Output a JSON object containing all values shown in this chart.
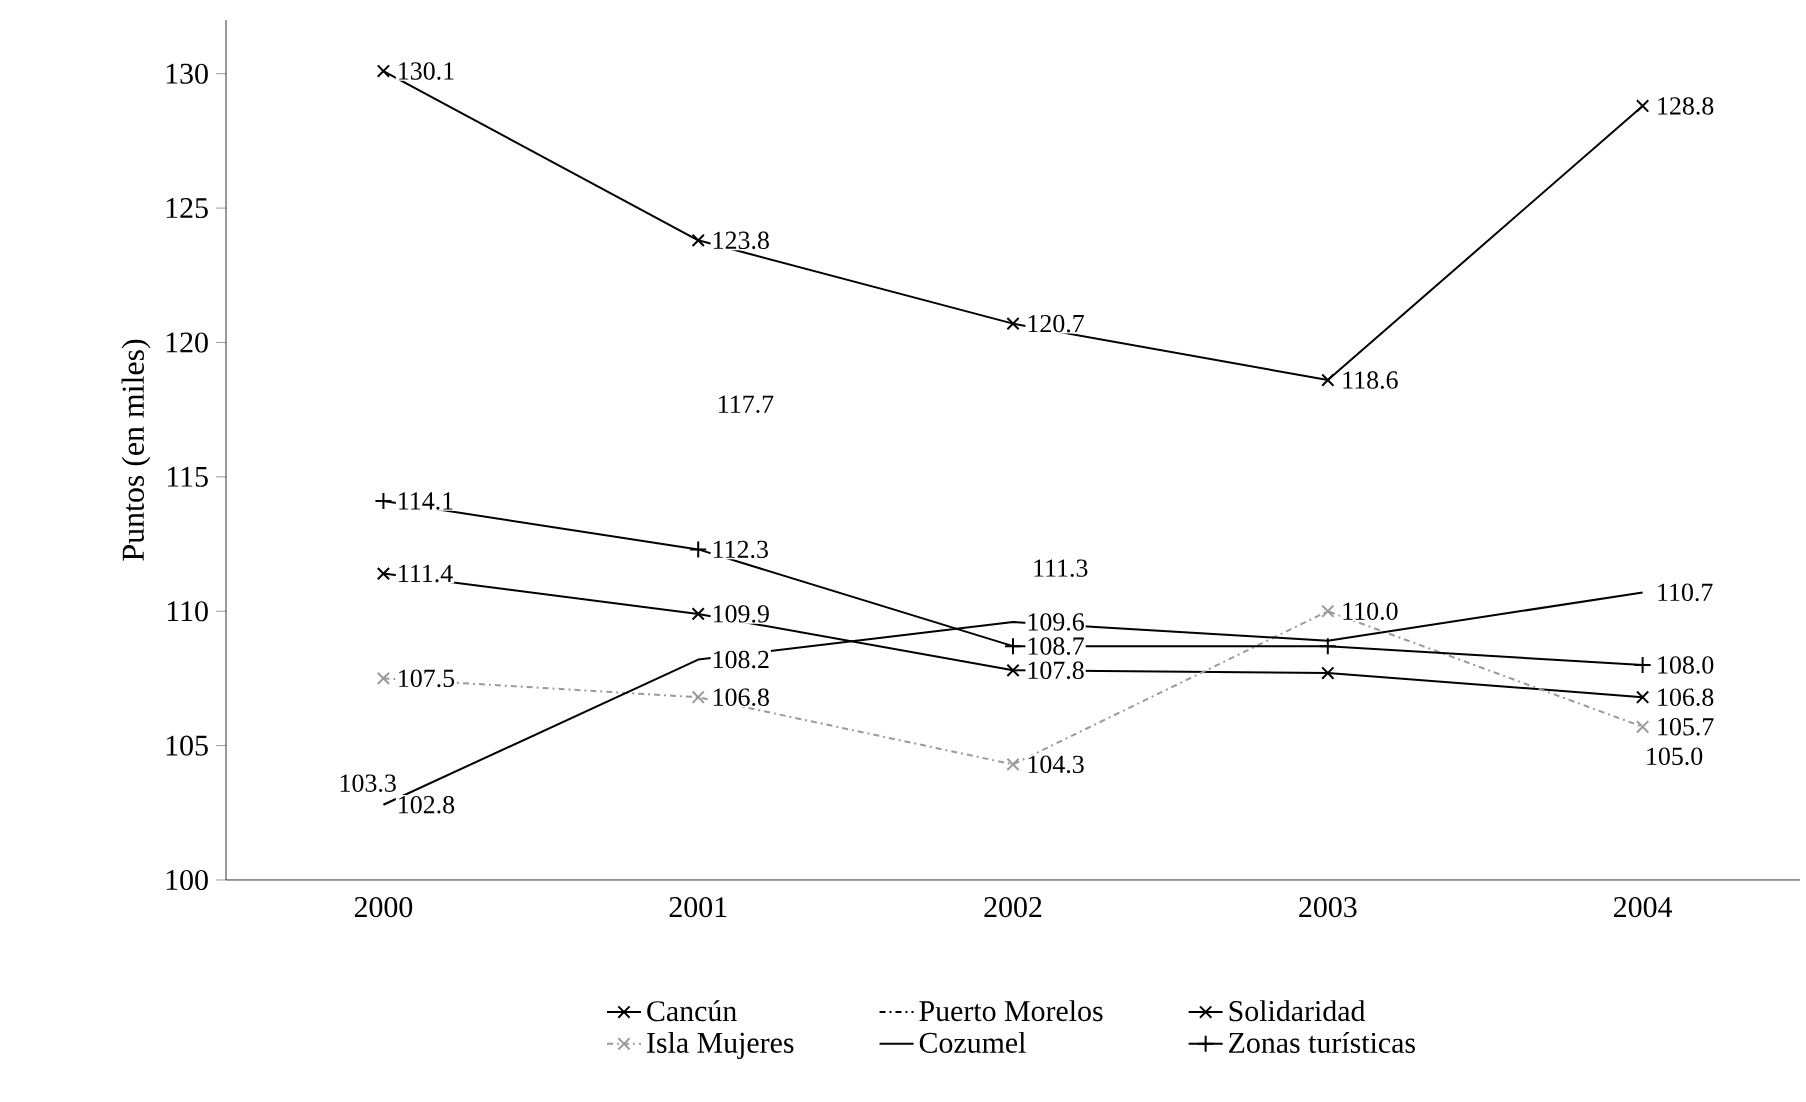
{
  "chart_data": {
    "type": "line",
    "ylabel": "Puntos (en miles)",
    "categories": [
      "2000",
      "2001",
      "2002",
      "2003",
      "2004"
    ],
    "annotations": [
      "103.3",
      "117.7",
      "111.3",
      "105.0"
    ],
    "ylim": [
      100,
      132
    ],
    "yticks": [
      100,
      105,
      110,
      115,
      120,
      125,
      130
    ],
    "grid": false,
    "legend": "bottom",
    "series": [
      {
        "name": "Cancún",
        "color": "#000000",
        "marker": "cross",
        "line_style": "solid",
        "values": [
          130.1,
          123.8,
          120.7,
          118.6,
          128.8
        ],
        "value_labels": [
          "130.1",
          "123.8",
          "120.7",
          "118.6",
          "128.8"
        ]
      },
      {
        "name": "Puerto Morelos",
        "color": "#000000",
        "marker": "none",
        "line_style": "dashed",
        "values": [
          null,
          null,
          null,
          null,
          null
        ]
      },
      {
        "name": "Solidaridad",
        "color": "#000000",
        "marker": "cross",
        "line_style": "solid",
        "values": [
          111.4,
          109.9,
          107.8,
          107.7,
          106.8
        ],
        "value_labels": [
          "111.4",
          "109.9",
          "107.8",
          null,
          "106.8"
        ]
      },
      {
        "name": "Isla Mujeres",
        "color": "#9a9a9a",
        "marker": "cross",
        "line_style": "dashed",
        "values": [
          107.5,
          106.8,
          104.3,
          110.0,
          105.7
        ],
        "value_labels": [
          "107.5",
          "106.8",
          "104.3",
          "110.0",
          "105.7"
        ]
      },
      {
        "name": "Cozumel",
        "color": "#000000",
        "marker": "none",
        "line_style": "solid",
        "values": [
          102.8,
          108.2,
          109.6,
          108.9,
          110.7
        ],
        "value_labels": [
          "102.8",
          "108.2",
          "109.6",
          null,
          "110.7"
        ]
      },
      {
        "name": "Zonas turísticas",
        "color": "#000000",
        "marker": "plus",
        "line_style": "solid",
        "values": [
          114.1,
          112.3,
          108.7,
          108.7,
          108.0
        ],
        "value_labels": [
          "114.1",
          "112.3",
          "108.7",
          null,
          "108.0"
        ]
      }
    ]
  }
}
